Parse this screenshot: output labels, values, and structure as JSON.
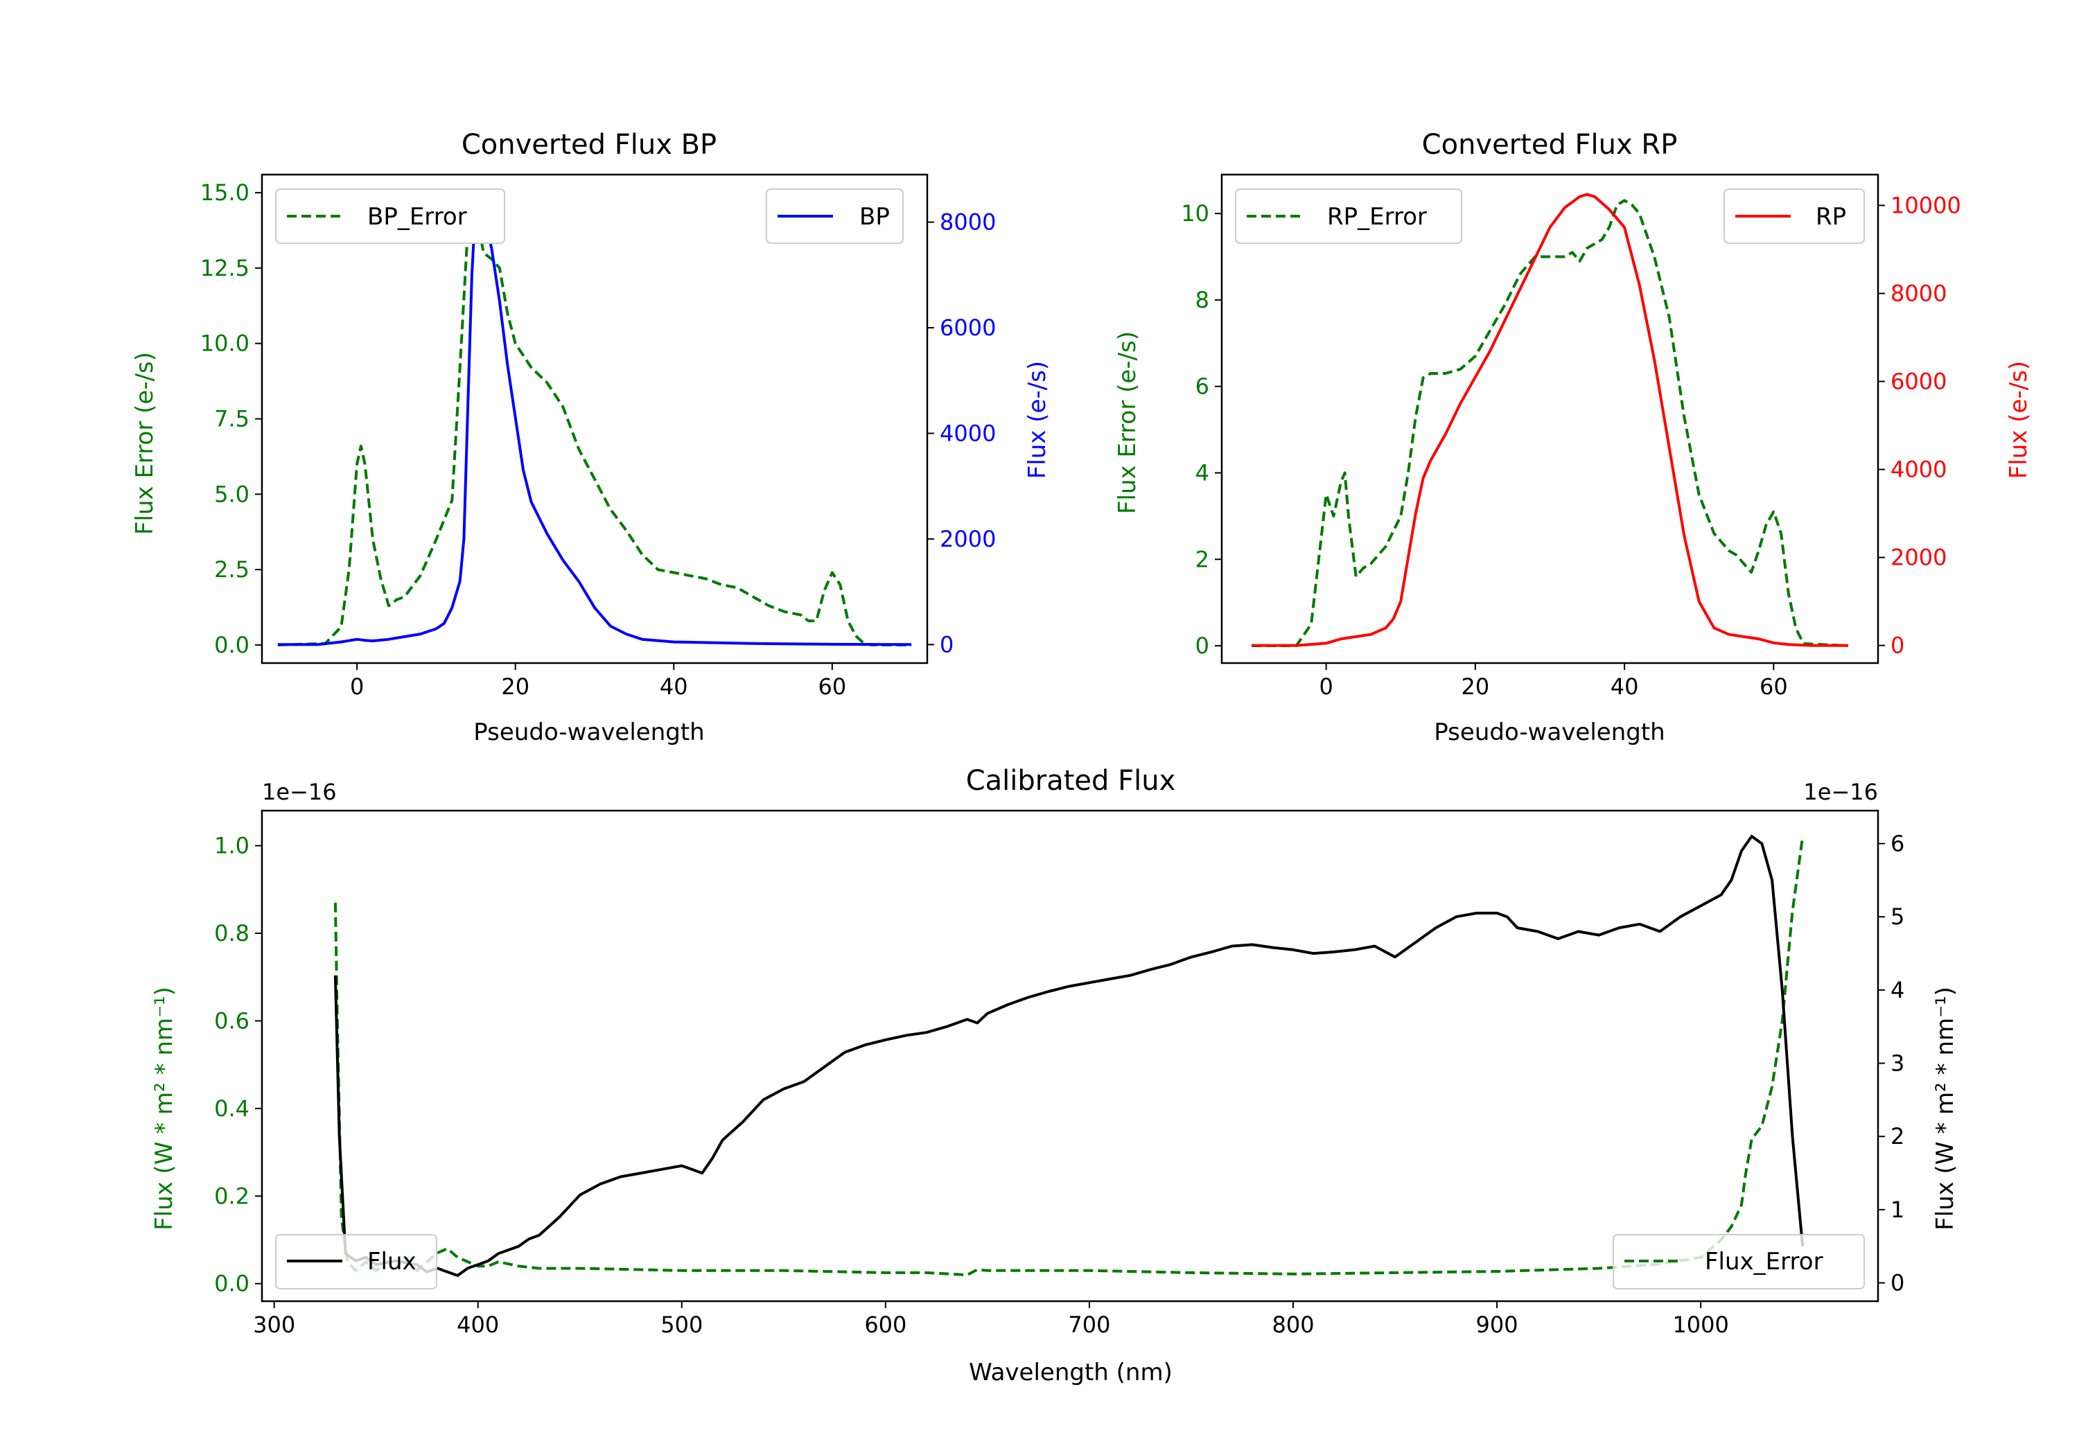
{
  "colors": {
    "green": "#007a00",
    "blue": "#0000ff",
    "red": "#ff0000",
    "black": "#000000",
    "axis": "#000000",
    "legend_border": "#cccccc"
  },
  "chart_data": [
    {
      "id": "bp",
      "type": "line",
      "title": "Converted Flux BP",
      "xlabel": "Pseudo-wavelength",
      "ylabel_left": "Flux Error (e-/s)",
      "ylabel_right": "Flux (e-/s)",
      "xlim": [
        -12,
        72
      ],
      "ylim_left": [
        -0.6,
        15.6
      ],
      "ylim_right": [
        -350,
        8900
      ],
      "xticks": [
        0,
        20,
        40,
        60
      ],
      "yticks_left": [
        "0.0",
        "2.5",
        "5.0",
        "7.5",
        "10.0",
        "12.5",
        "15.0"
      ],
      "yticks_right": [
        "0",
        "2000",
        "4000",
        "6000",
        "8000"
      ],
      "legend_left": "BP_Error",
      "legend_right": "BP",
      "left_color": "#007a00",
      "right_color": "#0000ff",
      "series_left": {
        "name": "BP_Error",
        "x": [
          -10,
          -4,
          -2,
          -1,
          0,
          0.5,
          1,
          2,
          3,
          4,
          5,
          6,
          8,
          10,
          12,
          13,
          14,
          15,
          16,
          17,
          18,
          19,
          20,
          22,
          24,
          26,
          28,
          30,
          32,
          34,
          36,
          38,
          40,
          42,
          44,
          46,
          48,
          50,
          52,
          54,
          56,
          57,
          58,
          59,
          60,
          61,
          62,
          63,
          64,
          65,
          70
        ],
        "y": [
          0,
          0.05,
          0.6,
          2.5,
          6.0,
          6.6,
          6.0,
          3.5,
          2.2,
          1.3,
          1.5,
          1.6,
          2.3,
          3.5,
          4.8,
          9.2,
          13.8,
          14.3,
          13.0,
          12.8,
          12.5,
          11.0,
          10.0,
          9.2,
          8.7,
          7.9,
          6.5,
          5.5,
          4.5,
          3.8,
          3.0,
          2.5,
          2.4,
          2.3,
          2.2,
          2.0,
          1.9,
          1.6,
          1.3,
          1.1,
          1.0,
          0.8,
          0.8,
          1.8,
          2.4,
          2.0,
          0.8,
          0.3,
          0.05,
          0,
          0
        ]
      },
      "series_right": {
        "name": "BP",
        "x": [
          -10,
          -5,
          -2,
          0,
          1,
          2,
          4,
          6,
          8,
          10,
          11,
          12,
          13,
          13.5,
          14,
          14.5,
          15,
          15.5,
          16,
          17,
          18,
          19,
          20,
          21,
          22,
          23,
          24,
          26,
          28,
          30,
          32,
          34,
          36,
          40,
          50,
          60,
          70
        ],
        "y": [
          0,
          0,
          50,
          100,
          80,
          70,
          100,
          150,
          200,
          300,
          400,
          700,
          1200,
          2000,
          4500,
          7000,
          8400,
          8500,
          8200,
          7500,
          6500,
          5300,
          4300,
          3300,
          2700,
          2400,
          2100,
          1600,
          1200,
          700,
          350,
          200,
          100,
          50,
          20,
          5,
          0
        ]
      }
    },
    {
      "id": "rp",
      "type": "line",
      "title": "Converted Flux RP",
      "xlabel": "Pseudo-wavelength",
      "ylabel_left": "Flux Error (e-/s)",
      "ylabel_right": "Flux (e-/s)",
      "xlim": [
        -14,
        74
      ],
      "ylim_left": [
        -0.4,
        10.9
      ],
      "ylim_right": [
        -400,
        10700
      ],
      "xticks": [
        0,
        20,
        40,
        60
      ],
      "yticks_left": [
        "0",
        "2",
        "4",
        "6",
        "8",
        "10"
      ],
      "yticks_right": [
        "0",
        "2000",
        "4000",
        "6000",
        "8000",
        "10000"
      ],
      "legend_left": "RP_Error",
      "legend_right": "RP",
      "left_color": "#007a00",
      "right_color": "#ff0000",
      "series_left": {
        "name": "RP_Error",
        "x": [
          -10,
          -4,
          -2,
          0,
          1,
          2,
          2.5,
          3,
          4,
          5,
          6,
          8,
          10,
          11,
          12,
          13,
          14,
          16,
          18,
          20,
          22,
          24,
          26,
          28,
          30,
          32,
          33,
          34,
          35,
          36,
          37,
          38,
          39,
          40,
          41,
          42,
          44,
          46,
          48,
          50,
          52,
          54,
          55,
          56,
          57,
          58,
          59,
          60,
          61,
          62,
          63,
          64,
          70
        ],
        "y": [
          0,
          0,
          0.5,
          3.5,
          3.0,
          3.8,
          4.0,
          3.0,
          1.6,
          1.8,
          1.9,
          2.3,
          3.0,
          4.0,
          5.3,
          6.2,
          6.3,
          6.3,
          6.4,
          6.7,
          7.3,
          7.9,
          8.6,
          9.0,
          9.0,
          9.0,
          9.1,
          8.9,
          9.2,
          9.3,
          9.4,
          9.7,
          10.2,
          10.3,
          10.2,
          10.0,
          9.0,
          7.6,
          5.3,
          3.5,
          2.6,
          2.2,
          2.1,
          1.9,
          1.7,
          2.2,
          2.8,
          3.1,
          2.6,
          1.2,
          0.4,
          0.05,
          0
        ]
      },
      "series_right": {
        "name": "RP",
        "x": [
          -10,
          -4,
          0,
          2,
          4,
          6,
          8,
          9,
          10,
          11,
          12,
          13,
          14,
          16,
          18,
          20,
          22,
          24,
          26,
          28,
          30,
          32,
          34,
          35,
          36,
          38,
          40,
          42,
          44,
          46,
          48,
          50,
          52,
          54,
          56,
          58,
          60,
          62,
          65,
          70
        ],
        "y": [
          0,
          0,
          50,
          150,
          200,
          250,
          400,
          600,
          1000,
          2000,
          3000,
          3800,
          4200,
          4800,
          5500,
          6100,
          6700,
          7400,
          8100,
          8800,
          9500,
          9950,
          10200,
          10250,
          10200,
          9900,
          9500,
          8200,
          6500,
          4500,
          2500,
          1000,
          400,
          250,
          200,
          150,
          60,
          20,
          0,
          0
        ]
      }
    },
    {
      "id": "calib",
      "type": "line",
      "title": "Calibrated Flux",
      "xlabel": "Wavelength (nm)",
      "ylabel_left": "Flux (W * m² * nm⁻¹)",
      "ylabel_right": "Flux (W * m² * nm⁻¹)",
      "offset_left": "1e−16",
      "offset_right": "1e−16",
      "xlim": [
        294,
        1087
      ],
      "ylim_left": [
        -0.04,
        1.08
      ],
      "ylim_right": [
        -0.25,
        6.45
      ],
      "xticks": [
        300,
        400,
        500,
        600,
        700,
        800,
        900,
        1000
      ],
      "yticks_left": [
        "0.0",
        "0.2",
        "0.4",
        "0.6",
        "0.8",
        "1.0"
      ],
      "yticks_right": [
        "0",
        "1",
        "2",
        "3",
        "4",
        "5",
        "6"
      ],
      "legend_left": "Flux",
      "legend_right": "Flux_Error",
      "left_color": "#000000",
      "right_color": "#007a00",
      "left_line_color": "#000000",
      "right_line_color": "#007a00",
      "series_flux": {
        "name": "Flux",
        "x": [
          330,
          332,
          335,
          340,
          345,
          350,
          360,
          370,
          375,
          380,
          385,
          390,
          395,
          400,
          405,
          410,
          415,
          420,
          425,
          430,
          440,
          450,
          460,
          470,
          480,
          490,
          500,
          505,
          510,
          515,
          520,
          530,
          540,
          550,
          560,
          570,
          580,
          590,
          600,
          610,
          620,
          630,
          640,
          645,
          650,
          660,
          670,
          680,
          690,
          700,
          710,
          720,
          730,
          740,
          750,
          760,
          770,
          780,
          790,
          800,
          810,
          820,
          830,
          840,
          850,
          860,
          870,
          880,
          890,
          900,
          905,
          910,
          920,
          930,
          940,
          950,
          960,
          970,
          980,
          990,
          1000,
          1010,
          1015,
          1020,
          1025,
          1030,
          1035,
          1040,
          1045,
          1050
        ],
        "y": [
          4.2,
          2.0,
          0.4,
          0.3,
          0.35,
          0.25,
          0.3,
          0.25,
          0.15,
          0.2,
          0.15,
          0.1,
          0.2,
          0.25,
          0.3,
          0.4,
          0.45,
          0.5,
          0.6,
          0.65,
          0.9,
          1.2,
          1.35,
          1.45,
          1.5,
          1.55,
          1.6,
          1.55,
          1.5,
          1.7,
          1.95,
          2.2,
          2.5,
          2.65,
          2.75,
          2.95,
          3.15,
          3.25,
          3.32,
          3.38,
          3.42,
          3.5,
          3.6,
          3.55,
          3.68,
          3.8,
          3.9,
          3.98,
          4.05,
          4.1,
          4.15,
          4.2,
          4.28,
          4.35,
          4.45,
          4.52,
          4.6,
          4.62,
          4.58,
          4.55,
          4.5,
          4.52,
          4.55,
          4.6,
          4.45,
          4.65,
          4.85,
          5.0,
          5.05,
          5.05,
          5.0,
          4.85,
          4.8,
          4.7,
          4.8,
          4.75,
          4.85,
          4.9,
          4.8,
          5.0,
          5.15,
          5.3,
          5.5,
          5.9,
          6.1,
          6.0,
          5.5,
          4.0,
          2.0,
          0.5
        ]
      },
      "series_error": {
        "name": "Flux_Error",
        "x": [
          330,
          331,
          333,
          336,
          340,
          345,
          350,
          355,
          360,
          365,
          370,
          375,
          380,
          385,
          390,
          395,
          400,
          405,
          410,
          420,
          430,
          440,
          450,
          500,
          550,
          600,
          620,
          640,
          645,
          650,
          700,
          750,
          800,
          850,
          900,
          950,
          960,
          980,
          1000,
          1005,
          1010,
          1015,
          1020,
          1022,
          1025,
          1030,
          1035,
          1040,
          1045,
          1050
        ],
        "y": [
          0.87,
          0.6,
          0.15,
          0.05,
          0.03,
          0.05,
          0.03,
          0.05,
          0.04,
          0.06,
          0.03,
          0.05,
          0.07,
          0.08,
          0.06,
          0.05,
          0.04,
          0.04,
          0.05,
          0.04,
          0.035,
          0.035,
          0.035,
          0.03,
          0.03,
          0.025,
          0.025,
          0.02,
          0.032,
          0.03,
          0.03,
          0.025,
          0.022,
          0.025,
          0.028,
          0.035,
          0.038,
          0.045,
          0.06,
          0.08,
          0.1,
          0.13,
          0.18,
          0.25,
          0.33,
          0.36,
          0.45,
          0.6,
          0.85,
          1.02
        ]
      }
    }
  ]
}
